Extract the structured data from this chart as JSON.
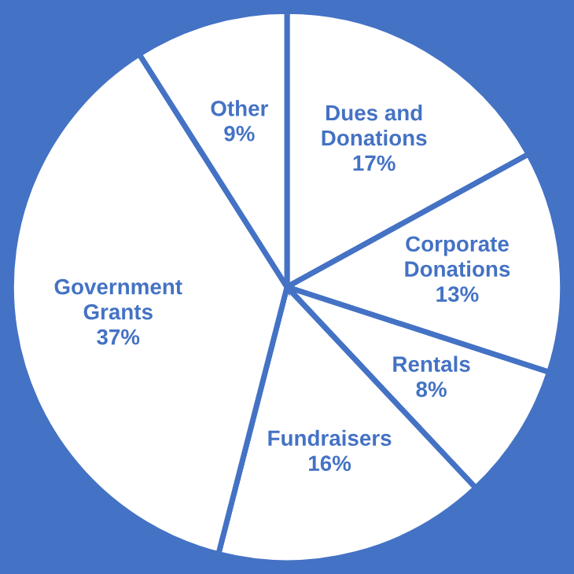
{
  "chart_data": {
    "type": "pie",
    "categories": [
      "Dues and\nDonations",
      "Corporate\nDonations",
      "Rentals",
      "Fundraisers",
      "Government\nGrants",
      "Other"
    ],
    "values": [
      17,
      13,
      8,
      16,
      37,
      9
    ],
    "value_labels": [
      "17%",
      "13%",
      "8%",
      "16%",
      "37%",
      "9%"
    ],
    "colors": [
      "#ffffff",
      "#ffffff",
      "#ffffff",
      "#ffffff",
      "#ffffff",
      "#ffffff"
    ]
  }
}
